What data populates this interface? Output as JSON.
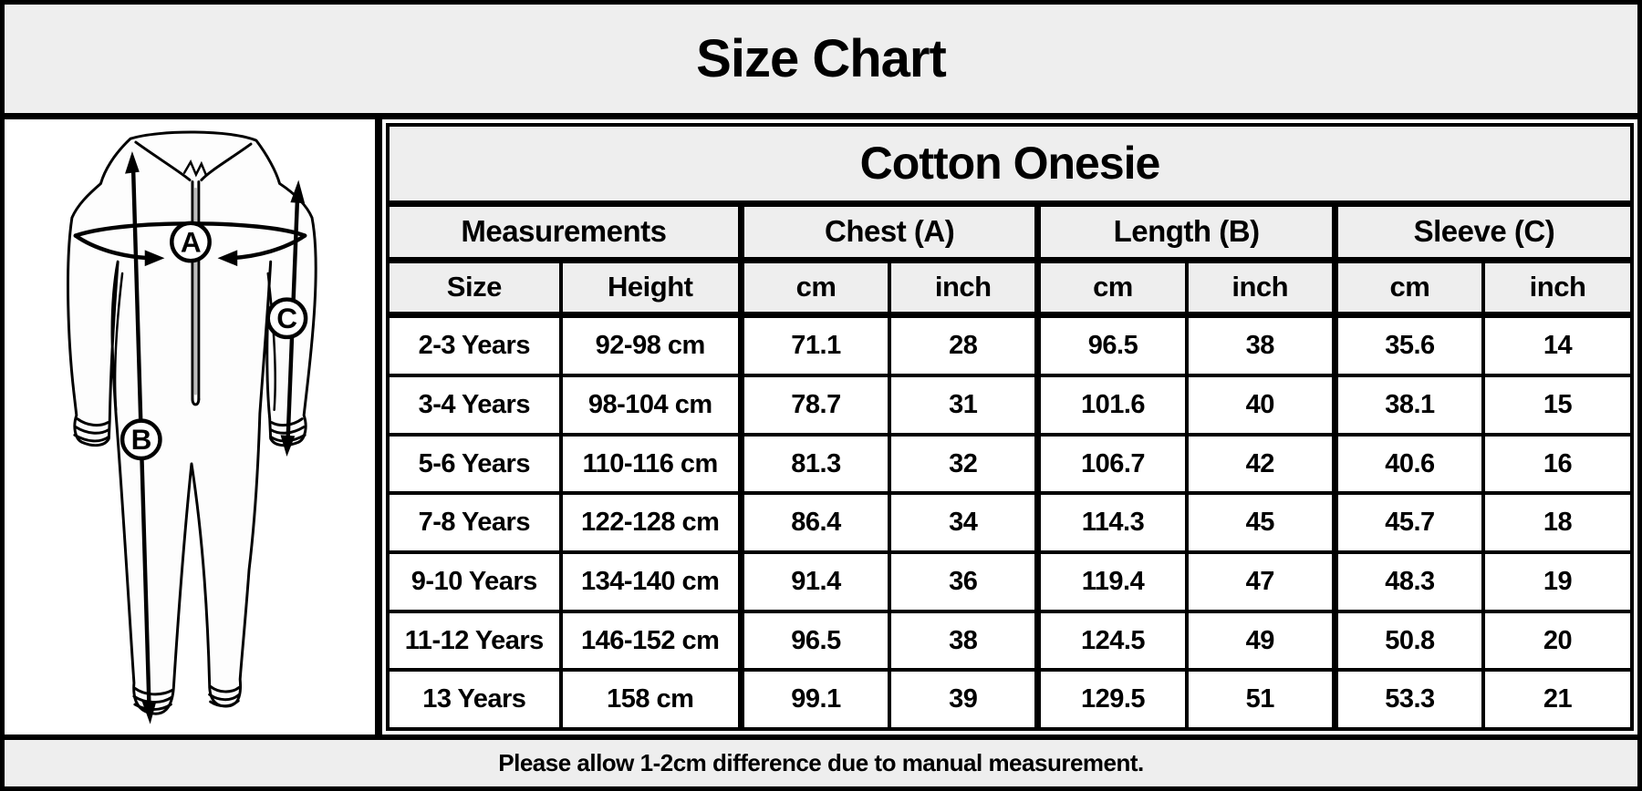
{
  "header": {
    "title": "Size Chart"
  },
  "diagram": {
    "markers": [
      "A",
      "B",
      "C"
    ]
  },
  "chart_data": {
    "type": "table",
    "product": "Cotton Onesie",
    "group_headers": [
      "Measurements",
      "Chest (A)",
      "Length (B)",
      "Sleeve (C)"
    ],
    "sub_headers": [
      "Size",
      "Height",
      "cm",
      "inch",
      "cm",
      "inch",
      "cm",
      "inch"
    ],
    "rows": [
      [
        "2-3 Years",
        "92-98 cm",
        "71.1",
        "28",
        "96.5",
        "38",
        "35.6",
        "14"
      ],
      [
        "3-4 Years",
        "98-104 cm",
        "78.7",
        "31",
        "101.6",
        "40",
        "38.1",
        "15"
      ],
      [
        "5-6 Years",
        "110-116 cm",
        "81.3",
        "32",
        "106.7",
        "42",
        "40.6",
        "16"
      ],
      [
        "7-8 Years",
        "122-128 cm",
        "86.4",
        "34",
        "114.3",
        "45",
        "45.7",
        "18"
      ],
      [
        "9-10 Years",
        "134-140 cm",
        "91.4",
        "36",
        "119.4",
        "47",
        "48.3",
        "19"
      ],
      [
        "11-12 Years",
        "146-152 cm",
        "96.5",
        "38",
        "124.5",
        "49",
        "50.8",
        "20"
      ],
      [
        "13 Years",
        "158 cm",
        "99.1",
        "39",
        "129.5",
        "51",
        "53.3",
        "21"
      ]
    ]
  },
  "footer": {
    "note": "Please allow 1-2cm difference due to manual measurement."
  },
  "colors": {
    "header_bg": "#eeeeee",
    "cell_bg": "#ffffff",
    "border": "#000000",
    "text": "#000000"
  }
}
